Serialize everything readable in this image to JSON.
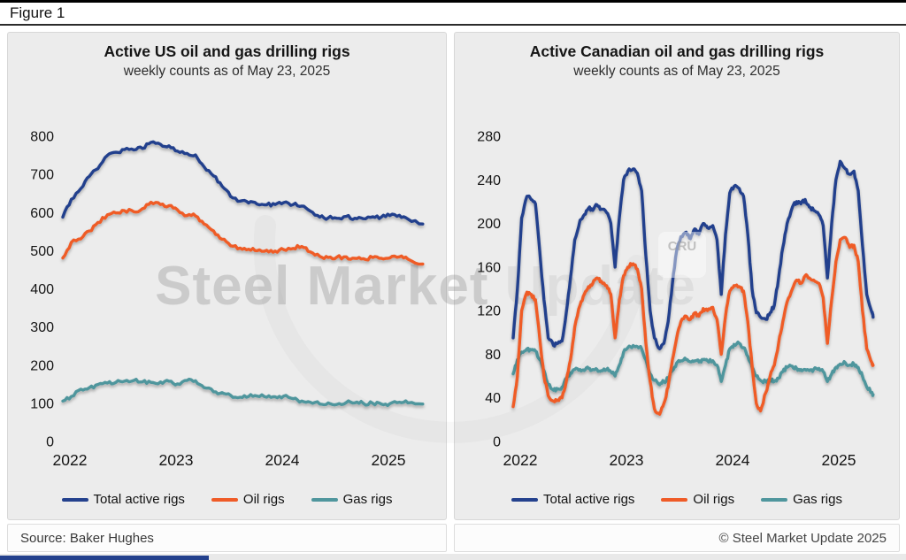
{
  "figure_label": "Figure 1",
  "watermark": {
    "bold": "Steel Market",
    "light": " Update",
    "cru": "CRU"
  },
  "footer": {
    "source": "Source: Baker Hughes",
    "copyright": "© Steel Market Update 2025"
  },
  "colors": {
    "total": "#24418d",
    "oil": "#ef5b27",
    "gas": "#4f969d",
    "panel_bg": "#ececec"
  },
  "chart_data": [
    {
      "type": "line",
      "title": "Active US oil and gas drilling rigs",
      "subtitle": "weekly counts as of May 23, 2025",
      "xlabel": "",
      "ylabel": "",
      "ylim": [
        0,
        800
      ],
      "yticks": [
        0,
        100,
        200,
        300,
        400,
        500,
        600,
        700,
        800
      ],
      "xticks": [
        "2022",
        "2023",
        "2024",
        "2025"
      ],
      "grid": false,
      "legend_position": "bottom",
      "x": [
        2022.0,
        2022.08,
        2022.17,
        2022.25,
        2022.33,
        2022.42,
        2022.5,
        2022.58,
        2022.67,
        2022.75,
        2022.83,
        2022.92,
        2023.0,
        2023.08,
        2023.17,
        2023.25,
        2023.33,
        2023.42,
        2023.5,
        2023.58,
        2023.67,
        2023.75,
        2023.83,
        2023.92,
        2024.0,
        2024.08,
        2024.17,
        2024.25,
        2024.33,
        2024.42,
        2024.5,
        2024.58,
        2024.67,
        2024.75,
        2024.83,
        2024.92,
        2025.0,
        2025.08,
        2025.17,
        2025.25,
        2025.39
      ],
      "series": [
        {
          "name": "Total active rigs",
          "color": "#24418d",
          "values": [
            588,
            635,
            663,
            695,
            715,
            750,
            758,
            765,
            764,
            768,
            784,
            779,
            775,
            761,
            755,
            751,
            720,
            696,
            669,
            642,
            630,
            625,
            622,
            620,
            621,
            626,
            621,
            617,
            604,
            588,
            586,
            585,
            590,
            585,
            584,
            589,
            588,
            592,
            593,
            583,
            570
          ]
        },
        {
          "name": "Oil rigs",
          "color": "#ef5b27",
          "values": [
            481,
            522,
            531,
            552,
            574,
            594,
            599,
            605,
            602,
            610,
            627,
            621,
            618,
            607,
            592,
            591,
            570,
            552,
            530,
            513,
            507,
            504,
            500,
            501,
            499,
            503,
            506,
            511,
            497,
            485,
            482,
            483,
            484,
            480,
            479,
            482,
            480,
            481,
            484,
            478,
            465
          ]
        },
        {
          "name": "Gas rigs",
          "color": "#4f969d",
          "values": [
            106,
            118,
            137,
            141,
            149,
            153,
            155,
            158,
            160,
            156,
            155,
            156,
            158,
            151,
            160,
            159,
            141,
            130,
            128,
            121,
            116,
            118,
            119,
            116,
            117,
            119,
            112,
            106,
            103,
            98,
            101,
            97,
            102,
            101,
            100,
            100,
            98,
            99,
            103,
            101,
            98
          ]
        }
      ]
    },
    {
      "type": "line",
      "title": "Active Canadian oil and gas drilling rigs",
      "subtitle": "weekly counts as of May 23, 2025",
      "xlabel": "",
      "ylabel": "",
      "ylim": [
        0,
        280
      ],
      "yticks": [
        0,
        40,
        80,
        120,
        160,
        200,
        240,
        280
      ],
      "xticks": [
        "2022",
        "2023",
        "2024",
        "2025"
      ],
      "grid": false,
      "legend_position": "bottom",
      "x": [
        2022.0,
        2022.04,
        2022.08,
        2022.13,
        2022.17,
        2022.21,
        2022.25,
        2022.29,
        2022.33,
        2022.38,
        2022.42,
        2022.46,
        2022.5,
        2022.54,
        2022.58,
        2022.63,
        2022.67,
        2022.71,
        2022.75,
        2022.79,
        2022.83,
        2022.88,
        2022.92,
        2022.96,
        2023.0,
        2023.04,
        2023.08,
        2023.13,
        2023.17,
        2023.21,
        2023.25,
        2023.29,
        2023.33,
        2023.38,
        2023.42,
        2023.46,
        2023.5,
        2023.54,
        2023.58,
        2023.63,
        2023.67,
        2023.71,
        2023.75,
        2023.79,
        2023.83,
        2023.88,
        2023.92,
        2023.96,
        2024.0,
        2024.04,
        2024.08,
        2024.13,
        2024.17,
        2024.21,
        2024.25,
        2024.29,
        2024.33,
        2024.38,
        2024.42,
        2024.46,
        2024.5,
        2024.54,
        2024.58,
        2024.63,
        2024.67,
        2024.71,
        2024.75,
        2024.79,
        2024.83,
        2024.88,
        2024.92,
        2024.96,
        2025.0,
        2025.04,
        2025.08,
        2025.13,
        2025.17,
        2025.21,
        2025.25,
        2025.29,
        2025.33,
        2025.38,
        2025.39
      ],
      "series": [
        {
          "name": "Total active rigs",
          "color": "#24418d",
          "values": [
            95,
            140,
            205,
            225,
            222,
            218,
            175,
            130,
            95,
            88,
            90,
            92,
            118,
            150,
            185,
            203,
            208,
            214,
            212,
            217,
            213,
            210,
            200,
            160,
            205,
            240,
            248,
            250,
            246,
            230,
            170,
            120,
            95,
            85,
            90,
            110,
            145,
            175,
            188,
            192,
            186,
            195,
            190,
            200,
            196,
            198,
            185,
            135,
            190,
            228,
            234,
            232,
            225,
            190,
            140,
            118,
            114,
            112,
            118,
            125,
            150,
            178,
            200,
            215,
            220,
            218,
            222,
            215,
            212,
            208,
            198,
            150,
            200,
            240,
            257,
            250,
            245,
            248,
            230,
            180,
            135,
            118,
            114
          ]
        },
        {
          "name": "Oil rigs",
          "color": "#ef5b27",
          "values": [
            32,
            60,
            120,
            137,
            135,
            130,
            95,
            60,
            42,
            37,
            38,
            40,
            55,
            75,
            105,
            125,
            135,
            142,
            145,
            150,
            147,
            143,
            135,
            95,
            130,
            152,
            160,
            163,
            158,
            140,
            90,
            55,
            30,
            25,
            35,
            50,
            75,
            95,
            110,
            115,
            112,
            118,
            115,
            122,
            120,
            123,
            112,
            80,
            115,
            138,
            143,
            142,
            138,
            110,
            70,
            35,
            28,
            45,
            60,
            70,
            90,
            110,
            128,
            140,
            148,
            145,
            152,
            150,
            148,
            145,
            132,
            90,
            130,
            165,
            185,
            187,
            178,
            180,
            165,
            120,
            85,
            72,
            70
          ]
        },
        {
          "name": "Gas rigs",
          "color": "#4f969d",
          "values": [
            62,
            75,
            82,
            85,
            84,
            83,
            75,
            65,
            52,
            47,
            48,
            50,
            58,
            63,
            66,
            66,
            65,
            67,
            66,
            66,
            65,
            66,
            64,
            60,
            70,
            82,
            86,
            88,
            87,
            85,
            75,
            62,
            56,
            52,
            55,
            58,
            65,
            72,
            74,
            75,
            73,
            74,
            73,
            75,
            74,
            74,
            70,
            55,
            70,
            85,
            89,
            90,
            86,
            78,
            68,
            60,
            56,
            55,
            57,
            55,
            58,
            64,
            68,
            69,
            67,
            66,
            66,
            65,
            66,
            67,
            64,
            55,
            62,
            68,
            71,
            72,
            70,
            71,
            68,
            60,
            50,
            45,
            43
          ]
        }
      ]
    }
  ]
}
